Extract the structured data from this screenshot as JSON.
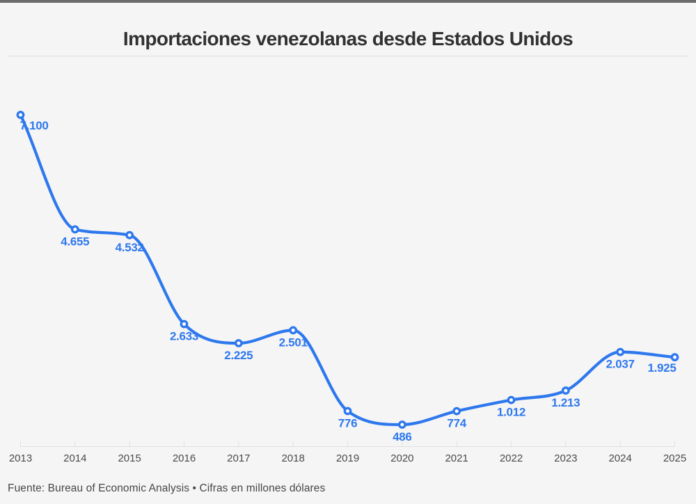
{
  "page": {
    "title": "Importaciones venezolanas desde Estados Unidos",
    "footer": "Fuente: Bureau of Economic Analysis • Cifras en millones dólares"
  },
  "colors": {
    "line": "#2e78ee",
    "marker_fill": "#ffffff",
    "value_label": "#2e78ee",
    "background": "#f5f5f5",
    "top_bar": "#6b6b6b",
    "title_text": "#313131",
    "axis_text": "#4a4a4a",
    "axis_line": "#e0e0e0",
    "footer_text": "#474747"
  },
  "chart_data": {
    "type": "line",
    "title": "Importaciones venezolanas desde Estados Unidos",
    "x": [
      2013,
      2014,
      2015,
      2016,
      2017,
      2018,
      2019,
      2020,
      2021,
      2022,
      2023,
      2024,
      2025
    ],
    "values": [
      7100,
      4655,
      4532,
      2633,
      2225,
      2501,
      776,
      486,
      774,
      1012,
      1213,
      2037,
      1925
    ],
    "point_labels": [
      "7.100",
      "4.655",
      "4.532",
      "2.633",
      "2.225",
      "2.501",
      "776",
      "486",
      "774",
      "1.012",
      "1.213",
      "2.037",
      "1.925"
    ],
    "xlabel": "",
    "ylabel": "",
    "ylim": [
      0,
      7500
    ],
    "grid": false,
    "legend": "none",
    "marker": "open-circle",
    "curve": "monotone",
    "source": "Fuente: Bureau of Economic Analysis",
    "units_note": "Cifras en millones dólares"
  }
}
